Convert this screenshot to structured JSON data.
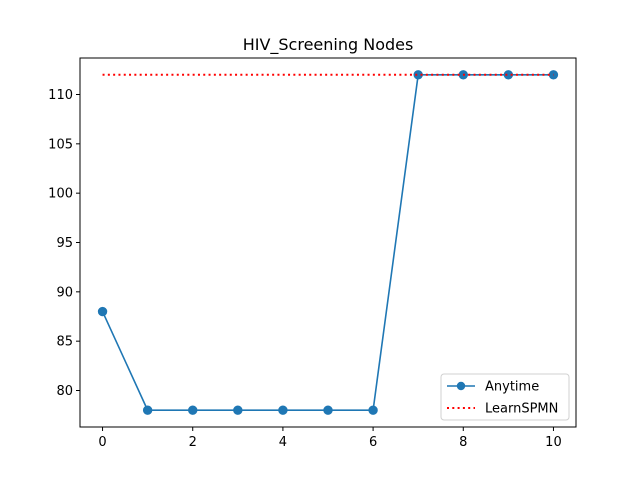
{
  "chart_data": {
    "type": "line",
    "title": "HIV_Screening Nodes",
    "xlabel": "",
    "ylabel": "",
    "xlim": [
      -0.5,
      10.5
    ],
    "ylim": [
      76.3,
      113.7
    ],
    "x_ticks": [
      0,
      2,
      4,
      6,
      8,
      10
    ],
    "y_ticks": [
      80,
      85,
      90,
      95,
      100,
      105,
      110
    ],
    "grid": false,
    "legend_position": "lower-right",
    "series": [
      {
        "name": "Anytime",
        "style": "solid-line-with-circle-markers",
        "color": "#1f77b4",
        "x": [
          0,
          1,
          2,
          3,
          4,
          5,
          6,
          7,
          8,
          9,
          10
        ],
        "y": [
          88,
          78,
          78,
          78,
          78,
          78,
          78,
          112,
          112,
          112,
          112
        ]
      },
      {
        "name": "LearnSPMN",
        "style": "dotted-line",
        "color": "#ff0000",
        "x": [
          0,
          10
        ],
        "y": [
          112,
          112
        ]
      }
    ]
  }
}
